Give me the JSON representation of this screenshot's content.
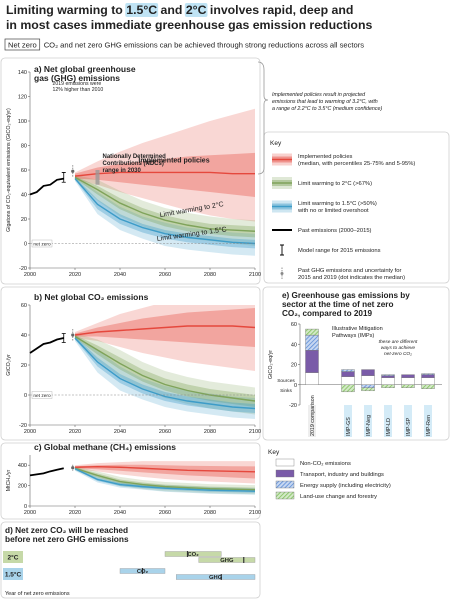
{
  "title": [
    "Limiting warming to ",
    "1.5°C",
    " and ",
    "2°C",
    " involves rapid, deep and",
    "in most cases immediate greenhouse gas emission reductions"
  ],
  "subtitle": [
    "Net zero",
    "CO₂ and net zero GHG emissions can be achieved through strong reductions across all sectors"
  ],
  "side_note": [
    "Implemented policies result in projected",
    "emissions that lead to warming of 3.2°C, with",
    "a range of 2.2°C to 3.5°C (medium confidence)"
  ],
  "key": {
    "title": "Key",
    "items": [
      {
        "label": [
          "Implemented policies",
          "(median, with percentiles 25-75% and 5-95%)"
        ],
        "symbol": "band",
        "color": "#e5483d"
      },
      {
        "label": [
          "Limit warming to 2°C (>67%)"
        ],
        "symbol": "band",
        "color": "#7fa35a"
      },
      {
        "label": [
          "Limit warming to 1.5°C (>50%)",
          "with no or limited overshoot"
        ],
        "symbol": "band",
        "color": "#3d9cc8"
      },
      {
        "label": [
          "Past emissions (2000–2015)"
        ],
        "symbol": "line",
        "color": "#000000"
      },
      {
        "label": [
          "Model range for 2015 emissions"
        ],
        "symbol": "range",
        "color": "#000000"
      },
      {
        "label": [
          "Past GHG emissions and uncertainty for",
          "2015 and 2019 (dot indicates the median)"
        ],
        "symbol": "dot-range",
        "color": "#888888"
      }
    ]
  },
  "chart_data": [
    {
      "type": "line",
      "title": [
        "a) Net global greenhouse",
        "gas (GHG) emissions"
      ],
      "ylabel": "Gigatons of CO₂-equivalent emissions (GtCO₂-eq/yr)",
      "xlim": [
        2000,
        2100
      ],
      "xticks": [
        2000,
        2020,
        2040,
        2060,
        2080,
        2100
      ],
      "ylim": [
        -20,
        140
      ],
      "yticks": [
        -20,
        0,
        20,
        40,
        60,
        80,
        100,
        120,
        140
      ],
      "zero_label": "net zero",
      "past": {
        "x": [
          2000,
          2003,
          2006,
          2009,
          2012,
          2015
        ],
        "values": [
          40,
          42,
          47,
          48,
          52,
          53
        ],
        "color": "#000000"
      },
      "model_range": {
        "x": 2015,
        "low": 50,
        "high": 58
      },
      "past_2019": {
        "x": 2019,
        "value": 59,
        "low": 54,
        "high": 64
      },
      "ndc": {
        "label": [
          "Nationally Determined",
          "Contributions (NDCs)",
          "range in 2030"
        ],
        "x": 2030,
        "low": 48,
        "high": 60
      },
      "note": [
        "2019 emissions were",
        "12% higher than 2010"
      ],
      "x": [
        2020,
        2030,
        2040,
        2050,
        2060,
        2070,
        2080,
        2090,
        2100
      ],
      "series": [
        {
          "name": "Implemented policies",
          "color": "#e5483d",
          "values": [
            55,
            57,
            58,
            58,
            58,
            58,
            58,
            57,
            57
          ],
          "p25": [
            53,
            52,
            50,
            48,
            46,
            44,
            42,
            40,
            38
          ],
          "p75": [
            57,
            62,
            65,
            67,
            69,
            71,
            72,
            73,
            74
          ],
          "p5": [
            52,
            48,
            42,
            37,
            32,
            27,
            23,
            20,
            18
          ],
          "p95": [
            58,
            67,
            75,
            82,
            88,
            94,
            100,
            105,
            110
          ]
        },
        {
          "name": "Limit warming to 2°C",
          "color": "#7fa35a",
          "values": [
            54,
            44,
            33,
            25,
            19,
            15,
            12,
            11,
            10
          ],
          "p25": [
            53,
            40,
            28,
            20,
            14,
            10,
            8,
            6,
            5
          ],
          "p75": [
            55,
            47,
            37,
            29,
            23,
            19,
            16,
            15,
            14
          ],
          "p5": [
            52,
            35,
            22,
            14,
            8,
            4,
            2,
            0,
            -2
          ],
          "p95": [
            56,
            52,
            43,
            35,
            29,
            25,
            22,
            20,
            19
          ]
        },
        {
          "name": "Limit warming to 1.5°C",
          "color": "#3d9cc8",
          "values": [
            53,
            32,
            20,
            13,
            8,
            5,
            3,
            1,
            0
          ],
          "p25": [
            52,
            28,
            16,
            9,
            4,
            1,
            -1,
            -3,
            -4
          ],
          "p75": [
            54,
            36,
            24,
            16,
            11,
            8,
            6,
            4,
            3
          ],
          "p5": [
            51,
            24,
            11,
            4,
            -2,
            -5,
            -7,
            -9,
            -10
          ],
          "p95": [
            55,
            42,
            30,
            22,
            17,
            13,
            11,
            9,
            8
          ]
        }
      ]
    },
    {
      "type": "line",
      "title": [
        "b) Net global CO₂ emissions"
      ],
      "ylabel": "GtCO₂/yr",
      "xlim": [
        2000,
        2100
      ],
      "xticks": [
        2000,
        2020,
        2040,
        2060,
        2080,
        2100
      ],
      "ylim": [
        -20,
        60
      ],
      "yticks": [
        -20,
        0,
        20,
        40,
        60
      ],
      "zero_label": "net zero",
      "past": {
        "x": [
          2000,
          2003,
          2006,
          2009,
          2012,
          2015
        ],
        "values": [
          28,
          31,
          34,
          35,
          37,
          38
        ],
        "color": "#000000"
      },
      "model_range": {
        "x": 2015,
        "low": 35,
        "high": 41
      },
      "past_2019": {
        "x": 2019,
        "value": 40,
        "low": 36,
        "high": 44
      },
      "x": [
        2020,
        2030,
        2040,
        2050,
        2060,
        2070,
        2080,
        2090,
        2100
      ],
      "series": [
        {
          "color": "#e5483d",
          "values": [
            40,
            42,
            43,
            44,
            45,
            46,
            46,
            46,
            45
          ],
          "p25": [
            39,
            39,
            38,
            37,
            36,
            35,
            34,
            33,
            32
          ],
          "p75": [
            41,
            45,
            48,
            51,
            53,
            55,
            56,
            57,
            58
          ],
          "p5": [
            38,
            36,
            32,
            28,
            25,
            22,
            20,
            18,
            16
          ],
          "p95": [
            42,
            48,
            54,
            58,
            62,
            65,
            68,
            70,
            72
          ]
        },
        {
          "color": "#7fa35a",
          "values": [
            39,
            30,
            21,
            13,
            7,
            3,
            0,
            -2,
            -4
          ],
          "p25": [
            38,
            27,
            17,
            9,
            3,
            -1,
            -4,
            -6,
            -8
          ],
          "p75": [
            40,
            33,
            25,
            17,
            11,
            7,
            4,
            2,
            0
          ],
          "p5": [
            37,
            23,
            12,
            4,
            -2,
            -6,
            -9,
            -11,
            -13
          ],
          "p95": [
            41,
            37,
            30,
            22,
            16,
            12,
            9,
            7,
            5
          ]
        },
        {
          "color": "#3d9cc8",
          "values": [
            38,
            22,
            11,
            4,
            -1,
            -4,
            -6,
            -8,
            -9
          ],
          "p25": [
            37,
            19,
            8,
            1,
            -4,
            -7,
            -9,
            -11,
            -12
          ],
          "p75": [
            39,
            25,
            14,
            7,
            2,
            -1,
            -3,
            -5,
            -6
          ],
          "p5": [
            36,
            15,
            3,
            -3,
            -8,
            -11,
            -13,
            -15,
            -16
          ],
          "p95": [
            40,
            30,
            19,
            11,
            6,
            3,
            1,
            -1,
            -2
          ]
        }
      ]
    },
    {
      "type": "line",
      "title": [
        "c) Global methane (CH₄) emissions"
      ],
      "ylabel": "MtCH₄/yr",
      "xlim": [
        2000,
        2100
      ],
      "xticks": [
        2000,
        2020,
        2040,
        2060,
        2080,
        2100
      ],
      "ylim": [
        0,
        500
      ],
      "yticks": [
        0,
        200,
        400
      ],
      "past": {
        "x": [
          2000,
          2003,
          2006,
          2009,
          2012,
          2015
        ],
        "values": [
          300,
          310,
          320,
          340,
          355,
          370
        ],
        "color": "#000000"
      },
      "past_2019": {
        "x": 2019,
        "value": 375,
        "low": 345,
        "high": 405
      },
      "x": [
        2020,
        2030,
        2040,
        2050,
        2060,
        2070,
        2080,
        2090,
        2100
      ],
      "series": [
        {
          "color": "#e5483d",
          "values": [
            380,
            385,
            380,
            370,
            360,
            350,
            345,
            340,
            335
          ],
          "p25": [
            370,
            360,
            345,
            330,
            315,
            300,
            290,
            280,
            270
          ],
          "p75": [
            390,
            400,
            405,
            405,
            400,
            395,
            392,
            390,
            388
          ],
          "p5": [
            360,
            340,
            310,
            285,
            265,
            250,
            240,
            230,
            220
          ],
          "p95": [
            400,
            420,
            430,
            440,
            440,
            440,
            440,
            440,
            440
          ]
        },
        {
          "color": "#7fa35a",
          "values": [
            370,
            300,
            240,
            210,
            190,
            180,
            170,
            165,
            160
          ],
          "p25": [
            360,
            280,
            220,
            190,
            170,
            160,
            150,
            145,
            140
          ],
          "p75": [
            380,
            320,
            260,
            230,
            210,
            200,
            190,
            185,
            180
          ],
          "p5": [
            350,
            260,
            195,
            165,
            145,
            135,
            125,
            120,
            115
          ],
          "p95": [
            390,
            340,
            285,
            255,
            235,
            225,
            215,
            210,
            205
          ]
        },
        {
          "color": "#3d9cc8",
          "values": [
            365,
            260,
            210,
            190,
            175,
            165,
            155,
            150,
            145
          ],
          "p25": [
            355,
            245,
            195,
            175,
            160,
            150,
            140,
            135,
            130
          ],
          "p75": [
            375,
            275,
            225,
            205,
            190,
            180,
            170,
            165,
            160
          ],
          "p5": [
            345,
            230,
            180,
            160,
            140,
            130,
            120,
            115,
            110
          ],
          "p95": [
            385,
            290,
            240,
            220,
            205,
            195,
            185,
            180,
            175
          ]
        }
      ]
    },
    {
      "type": "timeline",
      "title": [
        "d) Net zero CO₂ will be reached",
        "before net zero GHG emissions"
      ],
      "xlim": [
        2000,
        2100
      ],
      "xlabel": "Year of net zero emissions",
      "rows": [
        {
          "label": "2°C",
          "color": "#c6d9a8",
          "bars": [
            {
              "name": "CO₂",
              "start": 2060,
              "median": 2070,
              "end": 2085
            },
            {
              "name": "GHG",
              "start": 2075,
              "median": 2095,
              "end": 2100
            }
          ]
        },
        {
          "label": "1.5°C",
          "color": "#a9d3ea",
          "bars": [
            {
              "name": "CO₂",
              "start": 2040,
              "median": 2050,
              "end": 2060
            },
            {
              "name": "GHG",
              "start": 2065,
              "median": 2085,
              "end": 2100
            }
          ]
        }
      ]
    },
    {
      "type": "stacked-bar",
      "title": [
        "e) Greenhouse gas emissions by",
        "sector at the time of net zero",
        "CO₂, compared to 2019"
      ],
      "ylabel": "GtCO₂-eq/yr",
      "ylim": [
        -20,
        60
      ],
      "yticks": [
        -20,
        0,
        20,
        40,
        60
      ],
      "categories": [
        "2019 comparison",
        "IMP-GS",
        "IMP-Neg",
        "IMP-LD",
        "IMP-SP",
        "IMP-Ren"
      ],
      "sources_label": "Sources",
      "sinks_label": "Sinks",
      "group_label": [
        "Illustrative Mitigation",
        "Pathways (IMPs)"
      ],
      "group_note": [
        "these are different",
        "ways to achieve",
        "net-zero CO₂"
      ],
      "legend_title": "Key",
      "series": [
        {
          "name": "Non-CO₂ emissions",
          "color": "#ffffff",
          "pattern": "solid",
          "values": [
            12,
            8,
            9,
            7,
            7,
            7
          ]
        },
        {
          "name": "Transport, industry and buildings",
          "color": "#7a5ba8",
          "pattern": "solid",
          "values": [
            22,
            5,
            6,
            2,
            3,
            3
          ]
        },
        {
          "name": "Energy supply (including electricity)",
          "color": "#5b8bd6",
          "pattern": "hatch",
          "values": [
            15,
            2,
            -3,
            1,
            0,
            1
          ]
        },
        {
          "name": "Land-use change and forestry",
          "color": "#7fbf5a",
          "pattern": "hatch",
          "values": [
            6,
            -7,
            -3,
            -3,
            -3,
            -4
          ]
        }
      ]
    }
  ]
}
